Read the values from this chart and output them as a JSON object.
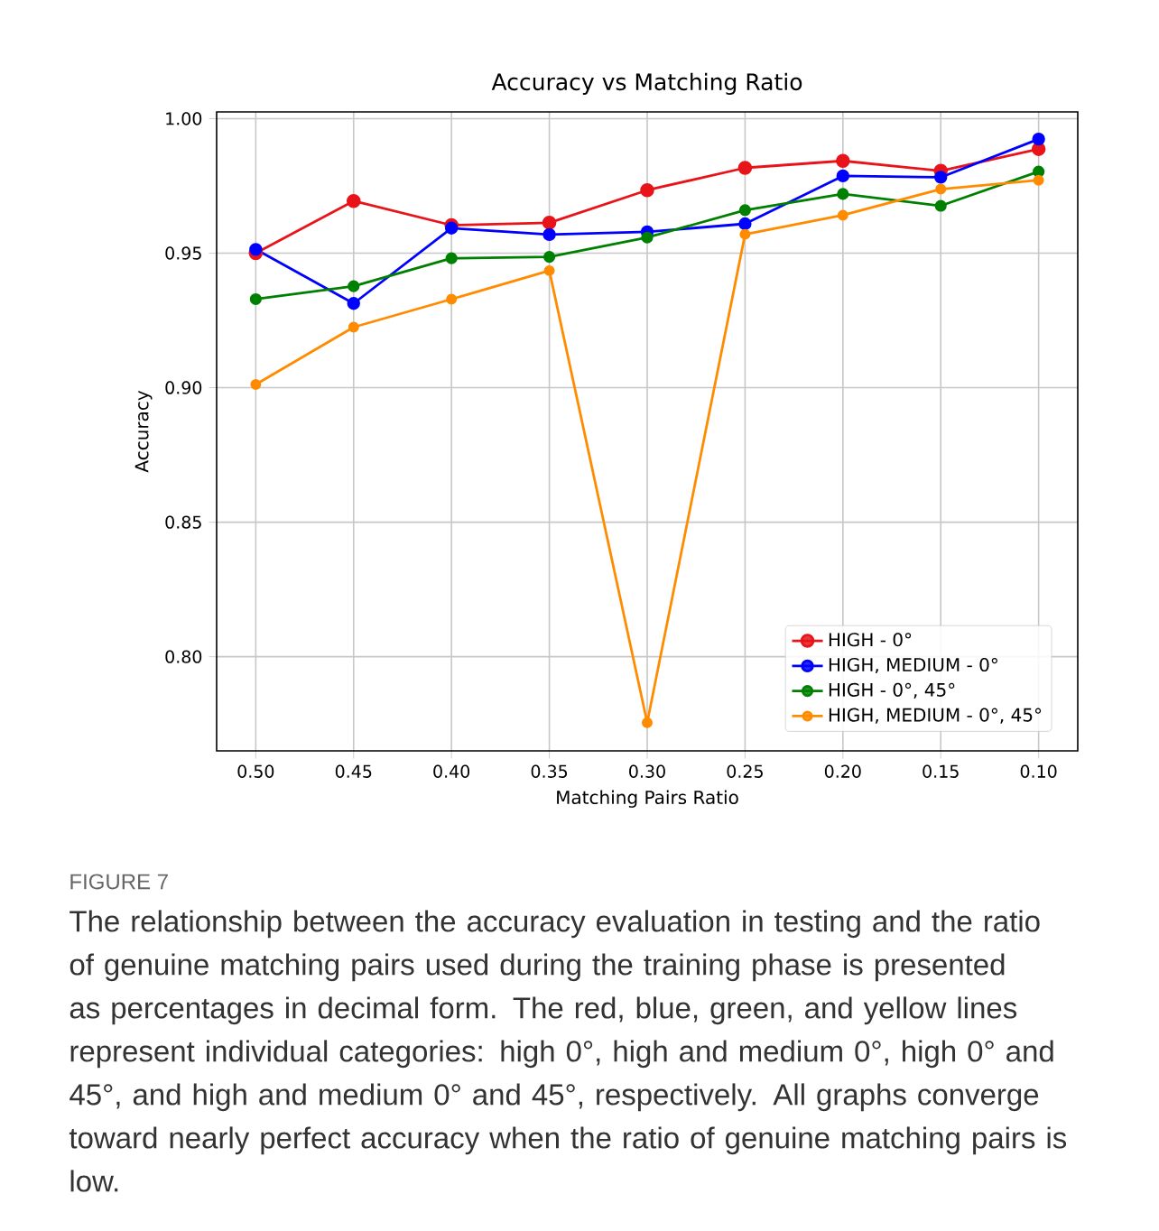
{
  "chart_data": {
    "type": "line",
    "title": "Accuracy vs Matching Ratio",
    "xlabel": "Matching Pairs Ratio",
    "ylabel": "Accuracy",
    "x": [
      0.5,
      0.45,
      0.4,
      0.35,
      0.3,
      0.25,
      0.2,
      0.15,
      0.1
    ],
    "series": [
      {
        "name": "HIGH - 0°",
        "color": "#e8141a",
        "values": [
          0.95,
          0.9694,
          0.9604,
          0.9613,
          0.9734,
          0.9817,
          0.9843,
          0.9806,
          0.9887
        ]
      },
      {
        "name": "HIGH, MEDIUM - 0°",
        "color": "#0000ff",
        "values": [
          0.9514,
          0.9313,
          0.9593,
          0.9569,
          0.9579,
          0.9609,
          0.9787,
          0.9782,
          0.9924
        ]
      },
      {
        "name": "HIGH - 0°, 45°",
        "color": "#008000",
        "values": [
          0.9329,
          0.9377,
          0.9481,
          0.9486,
          0.9558,
          0.966,
          0.972,
          0.9676,
          0.9803
        ]
      },
      {
        "name": "HIGH, MEDIUM - 0°, 45°",
        "color": "#ff8c00",
        "values": [
          0.9012,
          0.9225,
          0.9329,
          0.9435,
          0.7755,
          0.957,
          0.9641,
          0.9738,
          0.9771
        ]
      }
    ],
    "xlim": [
      0.52,
      0.08
    ],
    "ylim": [
      0.765,
      1.0025
    ],
    "xticks": [
      {
        "value": 0.5,
        "label": "0.50"
      },
      {
        "value": 0.45,
        "label": "0.45"
      },
      {
        "value": 0.4,
        "label": "0.40"
      },
      {
        "value": 0.35,
        "label": "0.35"
      },
      {
        "value": 0.3,
        "label": "0.30"
      },
      {
        "value": 0.25,
        "label": "0.25"
      },
      {
        "value": 0.2,
        "label": "0.20"
      },
      {
        "value": 0.15,
        "label": "0.15"
      },
      {
        "value": 0.1,
        "label": "0.10"
      }
    ],
    "yticks": [
      {
        "value": 0.8,
        "label": "0.80"
      },
      {
        "value": 0.85,
        "label": "0.85"
      },
      {
        "value": 0.9,
        "label": "0.90"
      },
      {
        "value": 0.95,
        "label": "0.95"
      },
      {
        "value": 1.0,
        "label": "1.00"
      }
    ],
    "grid": true,
    "legend": "bottom right",
    "marker": "circle",
    "line_style": "solid",
    "annotations": [
      "FIGURE 7",
      "The relationship between the accuracy evaluation in testing and the ratio of genuine matching pairs used during the training phase is presented as percentages in decimal form. The red, blue, green, and yellow lines represent individual categories: high 0°, high and medium 0°, high 0° and 45°, and high and medium 0° and 45°, respectively. All graphs converge toward nearly perfect accuracy when the ratio of genuine matching pairs is low."
    ]
  }
}
